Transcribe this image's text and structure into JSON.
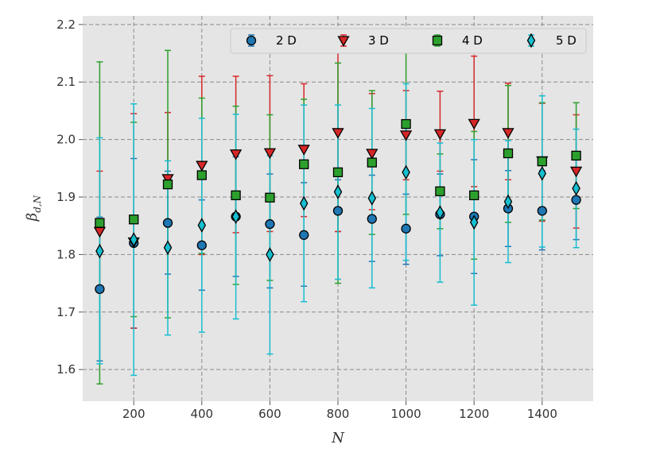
{
  "chart_data": {
    "type": "scatter",
    "xlabel": "N",
    "ylabel": {
      "base": "β",
      "sub": "d,N"
    },
    "xlim": [
      50,
      1550
    ],
    "ylim": [
      1.545,
      2.215
    ],
    "xticks": [
      200,
      400,
      600,
      800,
      1000,
      1200,
      1400
    ],
    "yticks": [
      1.6,
      1.7,
      1.8,
      1.9,
      2.0,
      2.1,
      2.2
    ],
    "grid": true,
    "legend_position": "top",
    "x": [
      100,
      200,
      300,
      400,
      500,
      600,
      700,
      800,
      900,
      1000,
      1100,
      1200,
      1300,
      1400,
      1500
    ],
    "series": [
      {
        "name": "2 D",
        "marker": "circle",
        "color": "#1f77b4",
        "values": [
          1.74,
          1.82,
          1.855,
          1.816,
          1.866,
          1.853,
          1.834,
          1.876,
          1.862,
          1.845,
          1.87,
          1.866,
          1.88,
          1.876,
          1.895
        ],
        "err_low": [
          1.615,
          1.672,
          1.766,
          1.738,
          1.762,
          1.742,
          1.745,
          1.84,
          1.788,
          1.783,
          1.798,
          1.767,
          1.814,
          1.808,
          1.826
        ],
        "err_high": [
          1.865,
          1.967,
          1.945,
          1.895,
          1.97,
          1.94,
          1.925,
          1.93,
          1.938,
          1.905,
          1.94,
          1.965,
          1.946,
          1.946,
          1.965
        ]
      },
      {
        "name": "3 D",
        "marker": "triangle-down",
        "color": "#d62728",
        "values": [
          1.84,
          1.822,
          1.932,
          1.955,
          1.975,
          1.977,
          1.983,
          2.012,
          1.976,
          2.008,
          2.01,
          2.028,
          2.012,
          1.963,
          1.945
        ],
        "err_low": [
          1.735,
          1.672,
          1.816,
          1.8,
          1.838,
          1.84,
          1.866,
          1.84,
          1.878,
          1.93,
          1.945,
          1.918,
          1.93,
          1.858,
          1.846
        ],
        "err_high": [
          1.945,
          2.045,
          2.047,
          2.11,
          2.11,
          2.111,
          2.097,
          2.19,
          2.08,
          2.085,
          2.084,
          2.145,
          2.098,
          2.063,
          2.043
        ]
      },
      {
        "name": "4 D",
        "marker": "square",
        "color": "#2ca02c",
        "values": [
          1.855,
          1.861,
          1.922,
          1.938,
          1.903,
          1.899,
          1.957,
          1.943,
          1.96,
          2.027,
          1.91,
          1.903,
          1.976,
          1.962,
          1.972
        ],
        "err_low": [
          1.575,
          1.692,
          1.69,
          1.802,
          1.748,
          1.755,
          1.83,
          1.75,
          1.835,
          1.87,
          1.845,
          1.792,
          1.856,
          1.86,
          1.88
        ],
        "err_high": [
          2.135,
          2.03,
          2.155,
          2.072,
          2.058,
          2.043,
          2.07,
          2.133,
          2.085,
          2.185,
          1.975,
          2.014,
          2.094,
          2.064,
          2.064
        ]
      },
      {
        "name": "5 D",
        "marker": "thin-diamond",
        "color": "#17becf",
        "values": [
          1.806,
          1.826,
          1.812,
          1.851,
          1.866,
          1.8,
          1.889,
          1.909,
          1.898,
          1.943,
          1.873,
          1.856,
          1.892,
          1.941,
          1.915
        ],
        "err_low": [
          1.61,
          1.59,
          1.66,
          1.665,
          1.688,
          1.627,
          1.718,
          1.757,
          1.742,
          1.79,
          1.752,
          1.712,
          1.786,
          1.813,
          1.812
        ],
        "err_high": [
          2.003,
          2.062,
          1.963,
          2.037,
          2.044,
          1.972,
          2.06,
          2.06,
          2.054,
          2.097,
          1.994,
          2.0,
          1.998,
          2.076,
          2.018
        ]
      }
    ]
  }
}
